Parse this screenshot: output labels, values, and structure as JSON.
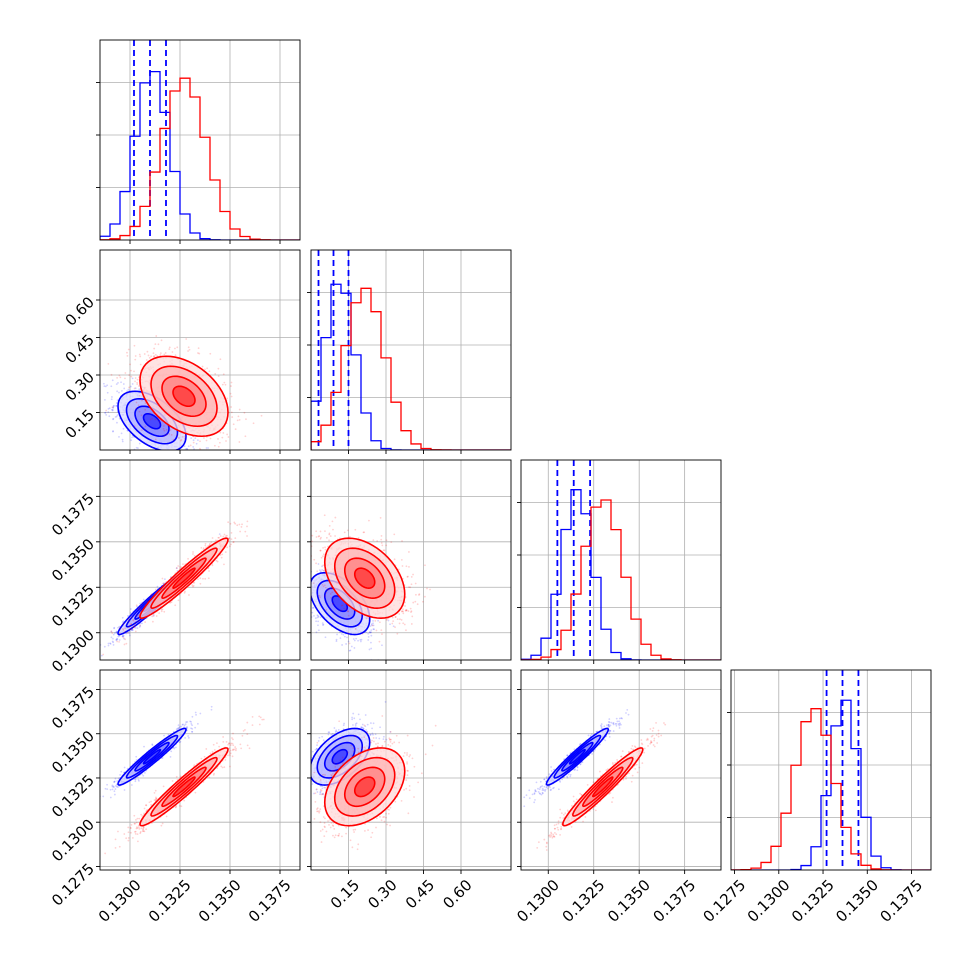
{
  "chart_data": {
    "type": "corner",
    "parameters": [
      "p0",
      "p1",
      "p2",
      "p3"
    ],
    "axes": {
      "p0": {
        "range": [
          0.1285,
          0.1385
        ],
        "ticks": [
          "0.1300",
          "0.1325",
          "0.1350",
          "0.1375"
        ],
        "tick_values": [
          0.13,
          0.1325,
          0.135,
          0.1375
        ]
      },
      "p1": {
        "range": [
          0.0,
          0.8
        ],
        "ticks": [
          "0.15",
          "0.30",
          "0.45",
          "0.60"
        ],
        "tick_values": [
          0.15,
          0.3,
          0.45,
          0.6
        ]
      },
      "p2": {
        "range": [
          0.1285,
          0.1395
        ],
        "ticks": [
          "0.1300",
          "0.1325",
          "0.1350",
          "0.1375"
        ],
        "tick_values": [
          0.13,
          0.1325,
          0.135,
          0.1375
        ]
      },
      "p3": {
        "range": [
          0.1273,
          0.1386
        ],
        "ticks": [
          "0.1275",
          "0.1300",
          "0.1325",
          "0.1350",
          "0.1375"
        ],
        "tick_values": [
          0.1275,
          0.13,
          0.1325,
          0.135,
          0.1375
        ]
      }
    },
    "grid": true,
    "series": [
      {
        "color": "#0000ff",
        "mean": [
          0.1311,
          0.115,
          0.1316,
          0.1337
        ],
        "std": [
          0.00085,
          0.06,
          0.00085,
          0.0008
        ],
        "corr": {
          "p0-p1": -0.5,
          "p0-p2": 0.96,
          "p0-p3": 0.96,
          "p1-p2": -0.5,
          "p1-p3": 0.5,
          "p2-p3": 0.96
        },
        "quantiles": {
          "p0": [
            0.1302,
            0.131,
            0.1318
          ],
          "p1": [
            0.03,
            0.09,
            0.15
          ],
          "p2": [
            0.1305,
            0.1314,
            0.1323
          ],
          "p3": [
            0.1327,
            0.1336,
            0.1345
          ]
        }
      },
      {
        "color": "#ff0000",
        "mean": [
          0.1327,
          0.215,
          0.133,
          0.132
        ],
        "std": [
          0.0011,
          0.08,
          0.0011,
          0.0011
        ],
        "corr": {
          "p0-p1": -0.4,
          "p0-p2": 0.96,
          "p0-p3": 0.96,
          "p1-p2": -0.4,
          "p1-p3": 0.4,
          "p2-p3": 0.96
        },
        "quantiles": null
      }
    ]
  }
}
